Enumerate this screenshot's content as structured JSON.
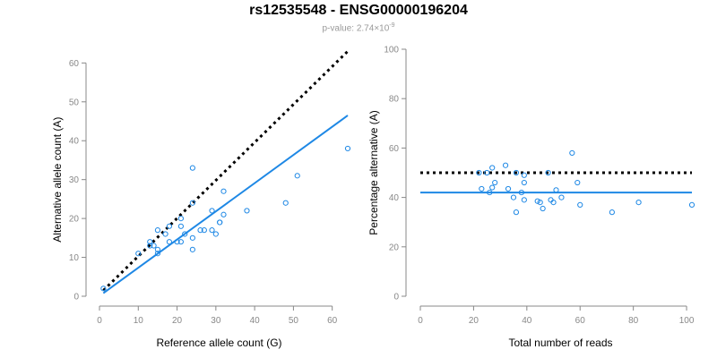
{
  "title": "rs12535548 - ENSG00000196204",
  "subtitle": {
    "prefix": "p-value: ",
    "mantissa": "2.74",
    "times": "×10",
    "exponent": "-9"
  },
  "colors": {
    "points": "#1e88e5",
    "fit_line": "#1e88e5",
    "reference_line": "#000000",
    "axis": "#888888"
  },
  "chart_data": [
    {
      "type": "scatter",
      "xlabel": "Reference allele count (G)",
      "ylabel": "Alternative allele count (A)",
      "xlim": [
        0,
        64
      ],
      "ylim": [
        0,
        61
      ],
      "xticks": [
        0,
        10,
        20,
        30,
        40,
        50,
        60
      ],
      "yticks": [
        0,
        10,
        20,
        30,
        40,
        50,
        60
      ],
      "grid": false,
      "points": [
        {
          "x": 1,
          "y": 2
        },
        {
          "x": 10,
          "y": 11
        },
        {
          "x": 13,
          "y": 13
        },
        {
          "x": 13,
          "y": 14
        },
        {
          "x": 14,
          "y": 13
        },
        {
          "x": 15,
          "y": 17
        },
        {
          "x": 15,
          "y": 12
        },
        {
          "x": 15,
          "y": 11
        },
        {
          "x": 17,
          "y": 16
        },
        {
          "x": 18,
          "y": 18
        },
        {
          "x": 18,
          "y": 14
        },
        {
          "x": 20,
          "y": 14
        },
        {
          "x": 21,
          "y": 18
        },
        {
          "x": 21,
          "y": 20
        },
        {
          "x": 21,
          "y": 14
        },
        {
          "x": 22,
          "y": 16
        },
        {
          "x": 24,
          "y": 33
        },
        {
          "x": 24,
          "y": 24
        },
        {
          "x": 24,
          "y": 15
        },
        {
          "x": 24,
          "y": 12
        },
        {
          "x": 26,
          "y": 17
        },
        {
          "x": 27,
          "y": 17
        },
        {
          "x": 29,
          "y": 17
        },
        {
          "x": 29,
          "y": 22
        },
        {
          "x": 30,
          "y": 16
        },
        {
          "x": 31,
          "y": 19
        },
        {
          "x": 31,
          "y": 19
        },
        {
          "x": 32,
          "y": 21
        },
        {
          "x": 32,
          "y": 27
        },
        {
          "x": 38,
          "y": 22
        },
        {
          "x": 48,
          "y": 24
        },
        {
          "x": 51,
          "y": 31
        },
        {
          "x": 64,
          "y": 38
        }
      ],
      "lines": [
        {
          "style": "dotted",
          "color": "#000000",
          "from": [
            1,
            1.5
          ],
          "to": [
            64,
            63
          ]
        },
        {
          "style": "solid",
          "color": "#1e88e5",
          "from": [
            1,
            0.8
          ],
          "to": [
            64,
            46.5
          ]
        }
      ]
    },
    {
      "type": "scatter",
      "xlabel": "Total number of reads",
      "ylabel": "Percentage alternative (A)",
      "xlim": [
        0,
        102
      ],
      "ylim": [
        0,
        100
      ],
      "xticks": [
        0,
        20,
        40,
        60,
        80,
        100
      ],
      "yticks": [
        0,
        20,
        40,
        60,
        80,
        100
      ],
      "grid": false,
      "points": [
        {
          "x": 22,
          "y": 50
        },
        {
          "x": 23,
          "y": 43.5
        },
        {
          "x": 25,
          "y": 50
        },
        {
          "x": 26,
          "y": 42
        },
        {
          "x": 27,
          "y": 52
        },
        {
          "x": 27,
          "y": 44
        },
        {
          "x": 28,
          "y": 46
        },
        {
          "x": 32,
          "y": 53
        },
        {
          "x": 33,
          "y": 43.5
        },
        {
          "x": 35,
          "y": 40
        },
        {
          "x": 36,
          "y": 50
        },
        {
          "x": 36,
          "y": 34
        },
        {
          "x": 38,
          "y": 42
        },
        {
          "x": 39,
          "y": 49
        },
        {
          "x": 39,
          "y": 46
        },
        {
          "x": 39,
          "y": 39
        },
        {
          "x": 44,
          "y": 38.5
        },
        {
          "x": 45,
          "y": 38
        },
        {
          "x": 46,
          "y": 35.5
        },
        {
          "x": 48,
          "y": 50
        },
        {
          "x": 49,
          "y": 39
        },
        {
          "x": 50,
          "y": 38
        },
        {
          "x": 51,
          "y": 43
        },
        {
          "x": 53,
          "y": 40
        },
        {
          "x": 57,
          "y": 58
        },
        {
          "x": 59,
          "y": 46
        },
        {
          "x": 60,
          "y": 37
        },
        {
          "x": 72,
          "y": 34
        },
        {
          "x": 82,
          "y": 38
        },
        {
          "x": 102,
          "y": 37
        }
      ],
      "lines": [
        {
          "style": "dotted",
          "color": "#000000",
          "from": [
            0,
            50
          ],
          "to": [
            102,
            50
          ]
        },
        {
          "style": "solid",
          "color": "#1e88e5",
          "from": [
            0,
            42
          ],
          "to": [
            102,
            42
          ]
        }
      ]
    }
  ]
}
